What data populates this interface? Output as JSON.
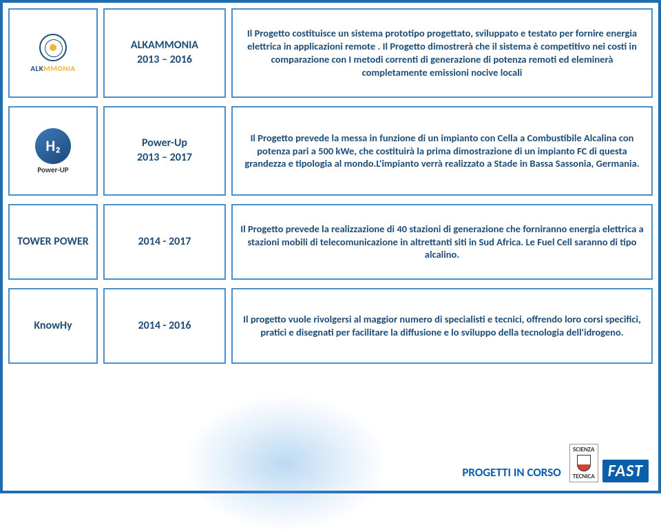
{
  "colors": {
    "outer_border": "#1f6cb0",
    "cell_border": "#4a8fc9",
    "text_primary": "#1e4d78",
    "footer_text": "#0b5eaa",
    "accent_orange": "#f9b233",
    "background": "#ffffff"
  },
  "rows": [
    {
      "logo": {
        "type": "alkammonia",
        "label_a": "ALK",
        "label_b": "MMONIA"
      },
      "name": "ALKAMMONIA\n2013 – 2016",
      "description": "Il Progetto costituisce un sistema prototipo progettato, sviluppato e testato per fornire energia elettrica in applicazioni remote . Il Progetto dimostrerà che il sistema è competitivo nei costi in comparazione con I metodi correnti di generazione di potenza remoti ed eleminerà completamente emissioni nocive locali"
    },
    {
      "logo": {
        "type": "powerup",
        "h2": "H₂",
        "sub": "Power-UP"
      },
      "name": "Power-Up\n2013 – 2017",
      "description": "Il Progetto prevede la messa in funzione di un impianto con Cella a Combustibile Alcalina con potenza pari a 500 kWe, che costituirà la prima dimostrazione di un impianto FC di questa grandezza e tipologia al mondo.L'impianto verrà realizzato a Stade in Bassa Sassonia, Germania."
    },
    {
      "logo": null,
      "name_in_first_column": "TOWER POWER",
      "name": "2014 - 2017",
      "description": "Il Progetto prevede la realizzazione di 40 stazioni di generazione che forniranno energia elettrica a stazioni mobili di telecomunicazione in altrettanti siti in Sud Africa. Le Fuel Cell saranno di tipo alcalino."
    },
    {
      "logo": null,
      "name_in_first_column": "KnowHy",
      "name": "2014 - 2016",
      "description": "Il progetto vuole rivolgersi al maggior numero di specialisti e tecnici, offrendo loro corsi specifici, pratici e disegnati per facilitare la diffusione e lo sviluppo della tecnologia dell'idrogeno."
    }
  ],
  "footer": {
    "title": "PROGETTI IN CORSO",
    "fast": "FAST",
    "sci_top": "SCIENZA",
    "sci_bottom": "TECNICA"
  }
}
